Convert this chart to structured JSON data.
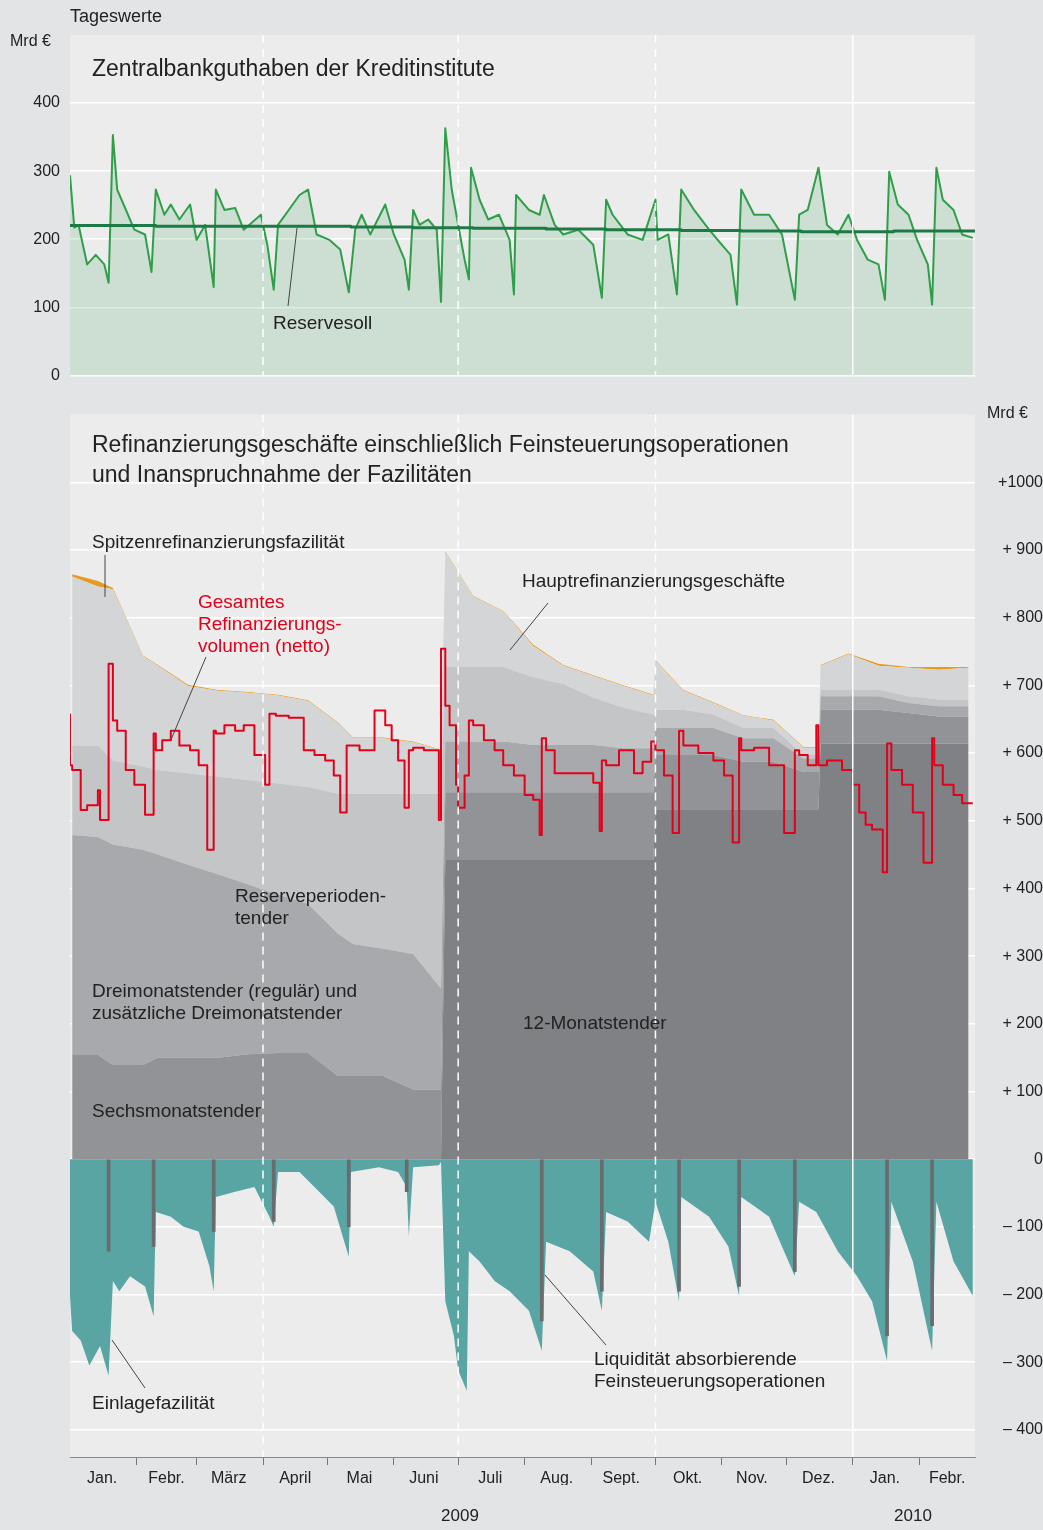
{
  "chart_data": [
    {
      "type": "area",
      "title": "Zentralbankguthaben der Kreditinstitute",
      "subtitle": "Tageswerte",
      "ylabel": "Mrd €",
      "xlim": [
        "2009-01-01",
        "2010-02-27"
      ],
      "ylim": [
        0,
        500
      ],
      "yticks": [
        0,
        100,
        200,
        300,
        400
      ],
      "tick_labels": "y",
      "grid": "y",
      "ref_lines": [
        {
          "axis": "x",
          "value": "2009-04-01",
          "line_style": "dashed",
          "color": "#ffffff"
        },
        {
          "axis": "x",
          "value": "2009-07-01",
          "line_style": "dashed",
          "color": "#ffffff"
        },
        {
          "axis": "x",
          "value": "2009-10-01",
          "line_style": "dashed",
          "color": "#ffffff"
        },
        {
          "axis": "x",
          "value": "2010-01-01",
          "line_style": "solid",
          "color": "#ffffff"
        }
      ],
      "series": [
        {
          "color": "#2e9e48",
          "x": [
            "2009-01-01",
            "2009-01-03",
            "2009-01-05",
            "2009-01-09",
            "2009-01-13",
            "2009-01-15",
            "2009-01-17",
            "2009-01-19",
            "2009-01-21",
            "2009-01-23",
            "2009-01-26",
            "2009-01-31",
            "2009-02-05",
            "2009-02-08",
            "2009-02-10",
            "2009-02-14",
            "2009-02-17",
            "2009-02-21",
            "2009-02-26",
            "2009-03-01",
            "2009-03-05",
            "2009-03-09",
            "2009-03-10",
            "2009-03-14",
            "2009-03-19",
            "2009-03-23",
            "2009-03-31",
            "2009-04-03",
            "2009-04-06",
            "2009-04-08",
            "2009-04-13",
            "2009-04-18",
            "2009-04-22",
            "2009-04-26",
            "2009-05-02",
            "2009-05-07",
            "2009-05-11",
            "2009-05-14",
            "2009-05-17",
            "2009-05-21",
            "2009-05-28",
            "2009-06-01",
            "2009-06-06",
            "2009-06-08",
            "2009-06-10",
            "2009-06-13",
            "2009-06-17",
            "2009-06-21",
            "2009-06-23",
            "2009-06-25",
            "2009-06-28",
            "2009-07-01",
            "2009-07-04",
            "2009-07-06",
            "2009-07-07",
            "2009-07-11",
            "2009-07-15",
            "2009-07-20",
            "2009-07-25",
            "2009-07-27",
            "2009-07-28",
            "2009-08-03",
            "2009-08-08",
            "2009-08-10",
            "2009-08-15",
            "2009-08-19",
            "2009-08-26",
            "2009-09-02",
            "2009-09-06",
            "2009-09-08",
            "2009-09-11",
            "2009-09-18",
            "2009-09-25",
            "2009-10-01",
            "2009-10-02",
            "2009-10-07",
            "2009-10-11",
            "2009-10-13",
            "2009-10-19",
            "2009-10-26",
            "2009-10-30",
            "2009-11-05",
            "2009-11-08",
            "2009-11-10",
            "2009-11-16",
            "2009-11-23",
            "2009-11-29",
            "2009-12-05",
            "2009-12-07",
            "2009-12-11",
            "2009-12-16",
            "2009-12-20",
            "2009-12-25",
            "2009-12-30",
            "2010-01-03",
            "2010-01-08",
            "2010-01-13",
            "2010-01-16",
            "2010-01-18",
            "2010-01-22",
            "2010-01-27",
            "2010-01-31",
            "2010-02-05",
            "2010-02-07",
            "2010-02-09",
            "2010-02-12",
            "2010-02-17",
            "2010-02-21",
            "2010-02-26"
          ],
          "values": [
            294,
            217,
            221,
            163,
            177,
            170,
            163,
            136,
            353,
            273,
            251,
            214,
            207,
            152,
            273,
            236,
            251,
            229,
            251,
            199,
            221,
            130,
            273,
            243,
            246,
            214,
            236,
            192,
            126,
            221,
            243,
            265,
            273,
            207,
            199,
            185,
            122,
            214,
            236,
            207,
            251,
            207,
            170,
            126,
            243,
            221,
            229,
            214,
            108,
            363,
            273,
            221,
            170,
            141,
            305,
            258,
            229,
            236,
            199,
            119,
            265,
            243,
            236,
            265,
            221,
            207,
            214,
            192,
            114,
            258,
            236,
            207,
            199,
            258,
            199,
            207,
            119,
            273,
            243,
            214,
            199,
            177,
            104,
            273,
            236,
            236,
            207,
            111,
            236,
            243,
            305,
            221,
            207,
            236,
            199,
            170,
            163,
            111,
            299,
            251,
            236,
            199,
            163,
            104,
            305,
            258,
            243,
            207,
            202
          ]
        },
        {
          "name": "Reservesoll",
          "type": "step",
          "color": "#1e7a44",
          "x": [
            "2009-01-01",
            "2009-01-21",
            "2009-02-10",
            "2009-03-10",
            "2009-04-08",
            "2009-05-12",
            "2009-06-10",
            "2009-07-08",
            "2009-08-11",
            "2009-09-08",
            "2009-10-13",
            "2009-11-10",
            "2009-12-08",
            "2010-01-20",
            "2010-02-10",
            "2010-02-27"
          ],
          "values": [
            221,
            220,
            220,
            219,
            219,
            219,
            218,
            217,
            216,
            215,
            214,
            213,
            212,
            211,
            212,
            212
          ]
        }
      ]
    },
    {
      "type": "area",
      "stacked": true,
      "title": "Refinanzierungsgeschäfte einschließlich Feinsteuerungsoperationen und Inanspruchnahme der Fazilitäten",
      "ylabel": "Mrd €",
      "grid": "y",
      "x": [
        "2009-01-02",
        "2009-01-14",
        "2009-01-21",
        "2009-02-04",
        "2009-02-11",
        "2009-02-25",
        "2009-03-11",
        "2009-03-25",
        "2009-04-08",
        "2009-04-22",
        "2009-05-06",
        "2009-05-13",
        "2009-05-27",
        "2009-06-10",
        "2009-06-23",
        "2009-06-25",
        "2009-07-08",
        "2009-07-22",
        "2009-08-05",
        "2009-08-19",
        "2009-09-02",
        "2009-09-16",
        "2009-09-30",
        "2009-10-01",
        "2009-10-14",
        "2009-10-28",
        "2009-11-11",
        "2009-11-25",
        "2009-12-09",
        "2009-12-16",
        "2009-12-17",
        "2009-12-30",
        "2010-01-13",
        "2010-01-27",
        "2010-02-10",
        "2010-02-24"
      ],
      "xlim": [
        "2009-01-01",
        "2010-02-27"
      ],
      "ylim": [
        -440,
        1100
      ],
      "yticks": [
        {
          "value": -400,
          "label": "– 400"
        },
        {
          "value": -300,
          "label": "– 300"
        },
        {
          "value": -200,
          "label": "– 200"
        },
        {
          "value": -100,
          "label": "– 100"
        },
        0,
        {
          "value": 100,
          "label": "+ 100"
        },
        {
          "value": 200,
          "label": "+ 200"
        },
        {
          "value": 300,
          "label": "+ 300"
        },
        {
          "value": 400,
          "label": "+ 400"
        },
        {
          "value": 500,
          "label": "+ 500"
        },
        {
          "value": 600,
          "label": "+ 600"
        },
        {
          "value": 700,
          "label": "+ 700"
        },
        {
          "value": 800,
          "label": "+ 800"
        },
        {
          "value": 900,
          "label": "+ 900"
        },
        {
          "value": 1000,
          "label": "+1000"
        }
      ],
      "xticks": [
        {
          "value": "2009-01-16",
          "label": "Jan."
        },
        {
          "value": "2009-02-01",
          "label": null
        },
        {
          "value": "2009-02-15",
          "label": "Febr."
        },
        {
          "value": "2009-03-01",
          "label": null
        },
        {
          "value": "2009-03-16",
          "label": "März"
        },
        {
          "value": "2009-04-01",
          "label": null
        },
        {
          "value": "2009-04-16",
          "label": "April"
        },
        {
          "value": "2009-05-01",
          "label": null
        },
        {
          "value": "2009-05-16",
          "label": "Mai"
        },
        {
          "value": "2009-06-01",
          "label": null
        },
        {
          "value": "2009-06-15",
          "label": "Juni"
        },
        {
          "value": "2009-07-01",
          "label": null
        },
        {
          "value": "2009-07-16",
          "label": "Juli"
        },
        {
          "value": "2009-08-01",
          "label": null
        },
        {
          "value": "2009-08-16",
          "label": "Aug."
        },
        {
          "value": "2009-09-01",
          "label": null
        },
        {
          "value": "2009-09-15",
          "label": "Sept."
        },
        {
          "value": "2009-10-01",
          "label": null
        },
        {
          "value": "2009-10-16",
          "label": "Okt."
        },
        {
          "value": "2009-11-01",
          "label": null
        },
        {
          "value": "2009-11-15",
          "label": "Nov."
        },
        {
          "value": "2009-12-01",
          "label": null
        },
        {
          "value": "2009-12-16",
          "label": "Dez."
        },
        {
          "value": "2010-01-01",
          "label": null
        },
        {
          "value": "2010-01-16",
          "label": "Jan."
        },
        {
          "value": "2010-02-01",
          "label": null
        },
        {
          "value": "2010-02-14",
          "label": "Febr."
        }
      ],
      "ref_lines": [
        {
          "axis": "x",
          "value": "2009-04-01",
          "line_style": "dashed",
          "color": "#ffffff"
        },
        {
          "axis": "x",
          "value": "2009-07-01",
          "line_style": "dashed",
          "color": "#ffffff"
        },
        {
          "axis": "x",
          "value": "2009-10-01",
          "line_style": "dashed",
          "color": "#ffffff"
        },
        {
          "axis": "x",
          "value": "2010-01-01",
          "line_style": "solid",
          "color": "#ffffff"
        }
      ],
      "annotations": [
        "2009",
        "2010"
      ],
      "series": [
        {
          "name": "12-Monatstender",
          "color": "#808185",
          "values": [
            0,
            0,
            0,
            0,
            0,
            0,
            0,
            0,
            0,
            0,
            0,
            0,
            0,
            0,
            0,
            442,
            442,
            442,
            442,
            442,
            442,
            442,
            442,
            517,
            517,
            517,
            517,
            517,
            517,
            517,
            614,
            614,
            614,
            614,
            614,
            614
          ]
        },
        {
          "name": "Sechsmonatstender",
          "color": "#929397",
          "values": [
            154,
            154,
            139,
            139,
            150,
            150,
            150,
            155,
            157,
            157,
            123,
            123,
            123,
            103,
            103,
            100,
            100,
            100,
            100,
            100,
            100,
            100,
            100,
            80,
            80,
            80,
            70,
            70,
            55,
            55,
            50,
            50,
            50,
            45,
            40,
            40
          ]
        },
        {
          "name": "Dreimonatstender (regulär) und zusätzliche Dreimonatstender",
          "color": "#a8a9ac",
          "values": [
            325,
            322,
            326,
            318,
            300,
            285,
            271,
            251,
            234,
            220,
            210,
            195,
            188,
            200,
            149,
            75,
            75,
            75,
            70,
            70,
            70,
            65,
            65,
            40,
            40,
            40,
            35,
            35,
            20,
            20,
            20,
            20,
            20,
            15,
            15,
            15
          ]
        },
        {
          "name": "Reserveperioden-tender",
          "color": "#c4c5c7",
          "values": [
            132,
            135,
            124,
            123,
            125,
            135,
            144,
            154,
            164,
            173,
            207,
            222,
            229,
            237,
            288,
            110,
            110,
            110,
            100,
            90,
            70,
            60,
            50,
            27,
            27,
            20,
            15,
            15,
            5,
            5,
            10,
            10,
            10,
            10,
            10,
            10
          ]
        },
        {
          "name": "Hauptrefinanzierungsgeschäfte",
          "color": "#d4d5d7",
          "values": [
            250,
            235,
            253,
            163,
            154,
            129,
            127,
            129,
            130,
            127,
            104,
            82,
            82,
            76,
            64,
            170,
            104,
            82,
            46,
            27,
            32,
            32,
            28,
            72,
            28,
            17,
            18,
            11,
            11,
            11,
            35,
            52,
            35,
            42,
            44,
            47
          ]
        },
        {
          "name": "Spitzenrefinanzierungsfazilität",
          "color": "#e89a1e",
          "values": [
            3,
            8,
            2,
            1,
            1,
            2,
            1,
            1,
            1,
            1,
            1,
            1,
            1,
            1,
            1,
            1,
            1,
            1,
            2,
            1,
            1,
            1,
            1,
            1,
            1,
            1,
            1,
            1,
            1,
            1,
            1,
            1,
            3,
            1,
            4,
            1
          ]
        },
        {
          "name": "Gesamtes Refinanzierungs-volumen (netto)",
          "type": "step",
          "color": "#e2001a",
          "x": [
            "2009-01-01",
            "2009-01-02",
            "2009-01-06",
            "2009-01-09",
            "2009-01-14",
            "2009-01-15",
            "2009-01-19",
            "2009-01-21",
            "2009-01-23",
            "2009-01-27",
            "2009-01-31",
            "2009-02-05",
            "2009-02-09",
            "2009-02-10",
            "2009-02-13",
            "2009-02-17",
            "2009-02-21",
            "2009-02-26",
            "2009-03-02",
            "2009-03-06",
            "2009-03-09",
            "2009-03-10",
            "2009-03-14",
            "2009-03-19",
            "2009-03-23",
            "2009-03-28",
            "2009-04-02",
            "2009-04-04",
            "2009-04-07",
            "2009-04-13",
            "2009-04-20",
            "2009-04-25",
            "2009-04-30",
            "2009-05-04",
            "2009-05-07",
            "2009-05-10",
            "2009-05-12",
            "2009-05-16",
            "2009-05-23",
            "2009-05-28",
            "2009-05-31",
            "2009-06-03",
            "2009-06-06",
            "2009-06-08",
            "2009-06-10",
            "2009-06-15",
            "2009-06-22",
            "2009-06-23",
            "2009-06-25",
            "2009-06-27",
            "2009-06-30",
            "2009-07-01",
            "2009-07-04",
            "2009-07-06",
            "2009-07-08",
            "2009-07-13",
            "2009-07-18",
            "2009-07-22",
            "2009-07-27",
            "2009-08-01",
            "2009-08-05",
            "2009-08-08",
            "2009-08-09",
            "2009-08-11",
            "2009-08-15",
            "2009-08-19",
            "2009-08-26",
            "2009-09-02",
            "2009-09-05",
            "2009-09-06",
            "2009-09-08",
            "2009-09-14",
            "2009-09-21",
            "2009-09-25",
            "2009-09-29",
            "2009-10-01",
            "2009-10-05",
            "2009-10-09",
            "2009-10-12",
            "2009-10-14",
            "2009-10-21",
            "2009-10-28",
            "2009-11-02",
            "2009-11-06",
            "2009-11-09",
            "2009-11-10",
            "2009-11-16",
            "2009-11-23",
            "2009-11-30",
            "2009-12-05",
            "2009-12-07",
            "2009-12-11",
            "2009-12-15",
            "2009-12-16",
            "2009-12-20",
            "2009-12-27",
            "2010-01-01",
            "2010-01-04",
            "2010-01-07",
            "2010-01-10",
            "2010-01-15",
            "2010-01-17",
            "2010-01-19",
            "2010-01-24",
            "2010-01-29",
            "2010-02-03",
            "2010-02-07",
            "2010-02-08",
            "2010-02-12",
            "2010-02-17",
            "2010-02-21",
            "2010-02-26"
          ],
          "values": [
            658,
            582,
            575,
            516,
            523,
            545,
            501,
            732,
            648,
            633,
            575,
            553,
            509,
            629,
            604,
            619,
            633,
            611,
            604,
            582,
            457,
            633,
            629,
            641,
            633,
            641,
            597,
            553,
            658,
            655,
            652,
            604,
            597,
            589,
            567,
            512,
            611,
            611,
            604,
            663,
            641,
            619,
            589,
            519,
            604,
            608,
            604,
            501,
            754,
            670,
            641,
            553,
            519,
            567,
            648,
            641,
            619,
            604,
            582,
            567,
            538,
            531,
            479,
            622,
            604,
            570,
            570,
            570,
            556,
            485,
            589,
            582,
            604,
            570,
            587,
            617,
            604,
            567,
            482,
            633,
            611,
            600,
            589,
            567,
            468,
            622,
            604,
            608,
            582,
            482,
            604,
            597,
            582,
            641,
            582,
            589,
            575,
            553,
            512,
            494,
            487,
            424,
            614,
            575,
            553,
            512,
            438,
            622,
            582,
            553,
            538,
            526
          ]
        },
        {
          "name": "Einlagefazilität",
          "color": "#58a5a4",
          "x": [
            "2009-01-01",
            "2009-01-02",
            "2009-01-06",
            "2009-01-10",
            "2009-01-15",
            "2009-01-19",
            "2009-01-21",
            "2009-01-24",
            "2009-01-29",
            "2009-02-05",
            "2009-02-09",
            "2009-02-10",
            "2009-02-17",
            "2009-02-23",
            "2009-03-02",
            "2009-03-07",
            "2009-03-09",
            "2009-03-10",
            "2009-03-19",
            "2009-03-28",
            "2009-04-04",
            "2009-04-06",
            "2009-04-08",
            "2009-04-18",
            "2009-04-25",
            "2009-05-04",
            "2009-05-11",
            "2009-05-12",
            "2009-05-25",
            "2009-06-03",
            "2009-06-07",
            "2009-06-08",
            "2009-06-10",
            "2009-06-22",
            "2009-06-23",
            "2009-06-25",
            "2009-06-29",
            "2009-07-01",
            "2009-07-05",
            "2009-07-06",
            "2009-07-11",
            "2009-07-18",
            "2009-07-25",
            "2009-08-03",
            "2009-08-09",
            "2009-08-11",
            "2009-08-22",
            "2009-09-02",
            "2009-09-06",
            "2009-09-08",
            "2009-09-18",
            "2009-09-28",
            "2009-10-01",
            "2009-10-07",
            "2009-10-12",
            "2009-10-13",
            "2009-10-26",
            "2009-11-04",
            "2009-11-09",
            "2009-11-10",
            "2009-11-23",
            "2009-12-05",
            "2009-12-07",
            "2009-12-15",
            "2009-12-25",
            "2010-01-03",
            "2010-01-10",
            "2010-01-17",
            "2010-01-19",
            "2010-01-29",
            "2010-02-07",
            "2010-02-09",
            "2010-02-17",
            "2010-02-26"
          ],
          "values": [
            -202,
            -254,
            -268,
            -305,
            -276,
            -320,
            -180,
            -195,
            -173,
            -188,
            -232,
            -78,
            -85,
            -100,
            -107,
            -158,
            -195,
            -56,
            -48,
            -41,
            -85,
            -100,
            -19,
            -19,
            -41,
            -70,
            -144,
            -19,
            -12,
            -19,
            -41,
            -114,
            -12,
            -9,
            -4,
            -210,
            -261,
            -312,
            -342,
            -136,
            -151,
            -180,
            -195,
            -224,
            -283,
            -122,
            -136,
            -166,
            -224,
            -78,
            -92,
            -122,
            -63,
            -122,
            -210,
            -56,
            -85,
            -129,
            -202,
            -56,
            -85,
            -173,
            -63,
            -78,
            -136,
            -173,
            -210,
            -298,
            -63,
            -151,
            -283,
            -63,
            -151,
            -202
          ]
        },
        {
          "name": "Liquidität absorbierende Feinsteuerungsoperationen",
          "type": "bar",
          "color": "#6a6b6e",
          "x": [
            "2009-01-19",
            "2009-02-09",
            "2009-03-09",
            "2009-04-06",
            "2009-05-11",
            "2009-06-07",
            "2009-08-09",
            "2009-09-06",
            "2009-10-12",
            "2009-11-09",
            "2009-12-05",
            "2010-01-17",
            "2010-02-07"
          ],
          "values": [
            -136,
            -129,
            -107,
            -92,
            -100,
            -48,
            -239,
            -195,
            -195,
            -188,
            -166,
            -261,
            -246
          ]
        }
      ]
    }
  ]
}
